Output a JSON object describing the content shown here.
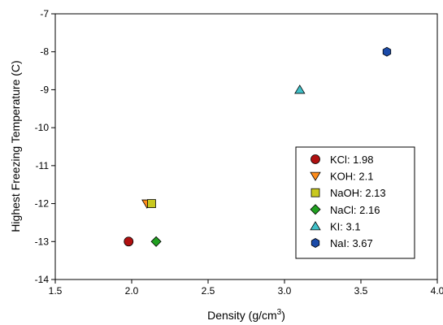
{
  "chart_data": {
    "type": "scatter",
    "title": "",
    "xlabel": "Density (g/cm",
    "xlabel_superscript": "3",
    "xlabel_suffix": ")",
    "ylabel": "Highest Freezing Temperature (C)",
    "xlim": [
      1.5,
      4.0
    ],
    "ylim": [
      -14,
      -7
    ],
    "xticks": [
      "1.5",
      "2.0",
      "2.5",
      "3.0",
      "3.5",
      "4.0"
    ],
    "yticks": [
      "-14",
      "-13",
      "-12",
      "-11",
      "-10",
      "-9",
      "-8",
      "-7"
    ],
    "grid": false,
    "legend_position": "lower-right",
    "series": [
      {
        "name": "KCl: 1.98",
        "marker": "circle",
        "color": "#b01010",
        "points": [
          {
            "x": 1.98,
            "y": -13
          }
        ]
      },
      {
        "name": "KOH: 2.1",
        "marker": "triangle-down",
        "color": "#ff8c1a",
        "points": [
          {
            "x": 2.1,
            "y": -12
          }
        ]
      },
      {
        "name": "NaOH: 2.13",
        "marker": "square",
        "color": "#c8c81e",
        "points": [
          {
            "x": 2.13,
            "y": -12
          }
        ]
      },
      {
        "name": "NaCl: 2.16",
        "marker": "diamond",
        "color": "#20a020",
        "points": [
          {
            "x": 2.16,
            "y": -13
          }
        ]
      },
      {
        "name": "KI: 3.1",
        "marker": "triangle-up",
        "color": "#40c0c8",
        "points": [
          {
            "x": 3.1,
            "y": -9
          }
        ]
      },
      {
        "name": "NaI: 3.67",
        "marker": "hexagon",
        "color": "#1a4aa8",
        "points": [
          {
            "x": 3.67,
            "y": -8
          }
        ]
      }
    ]
  }
}
